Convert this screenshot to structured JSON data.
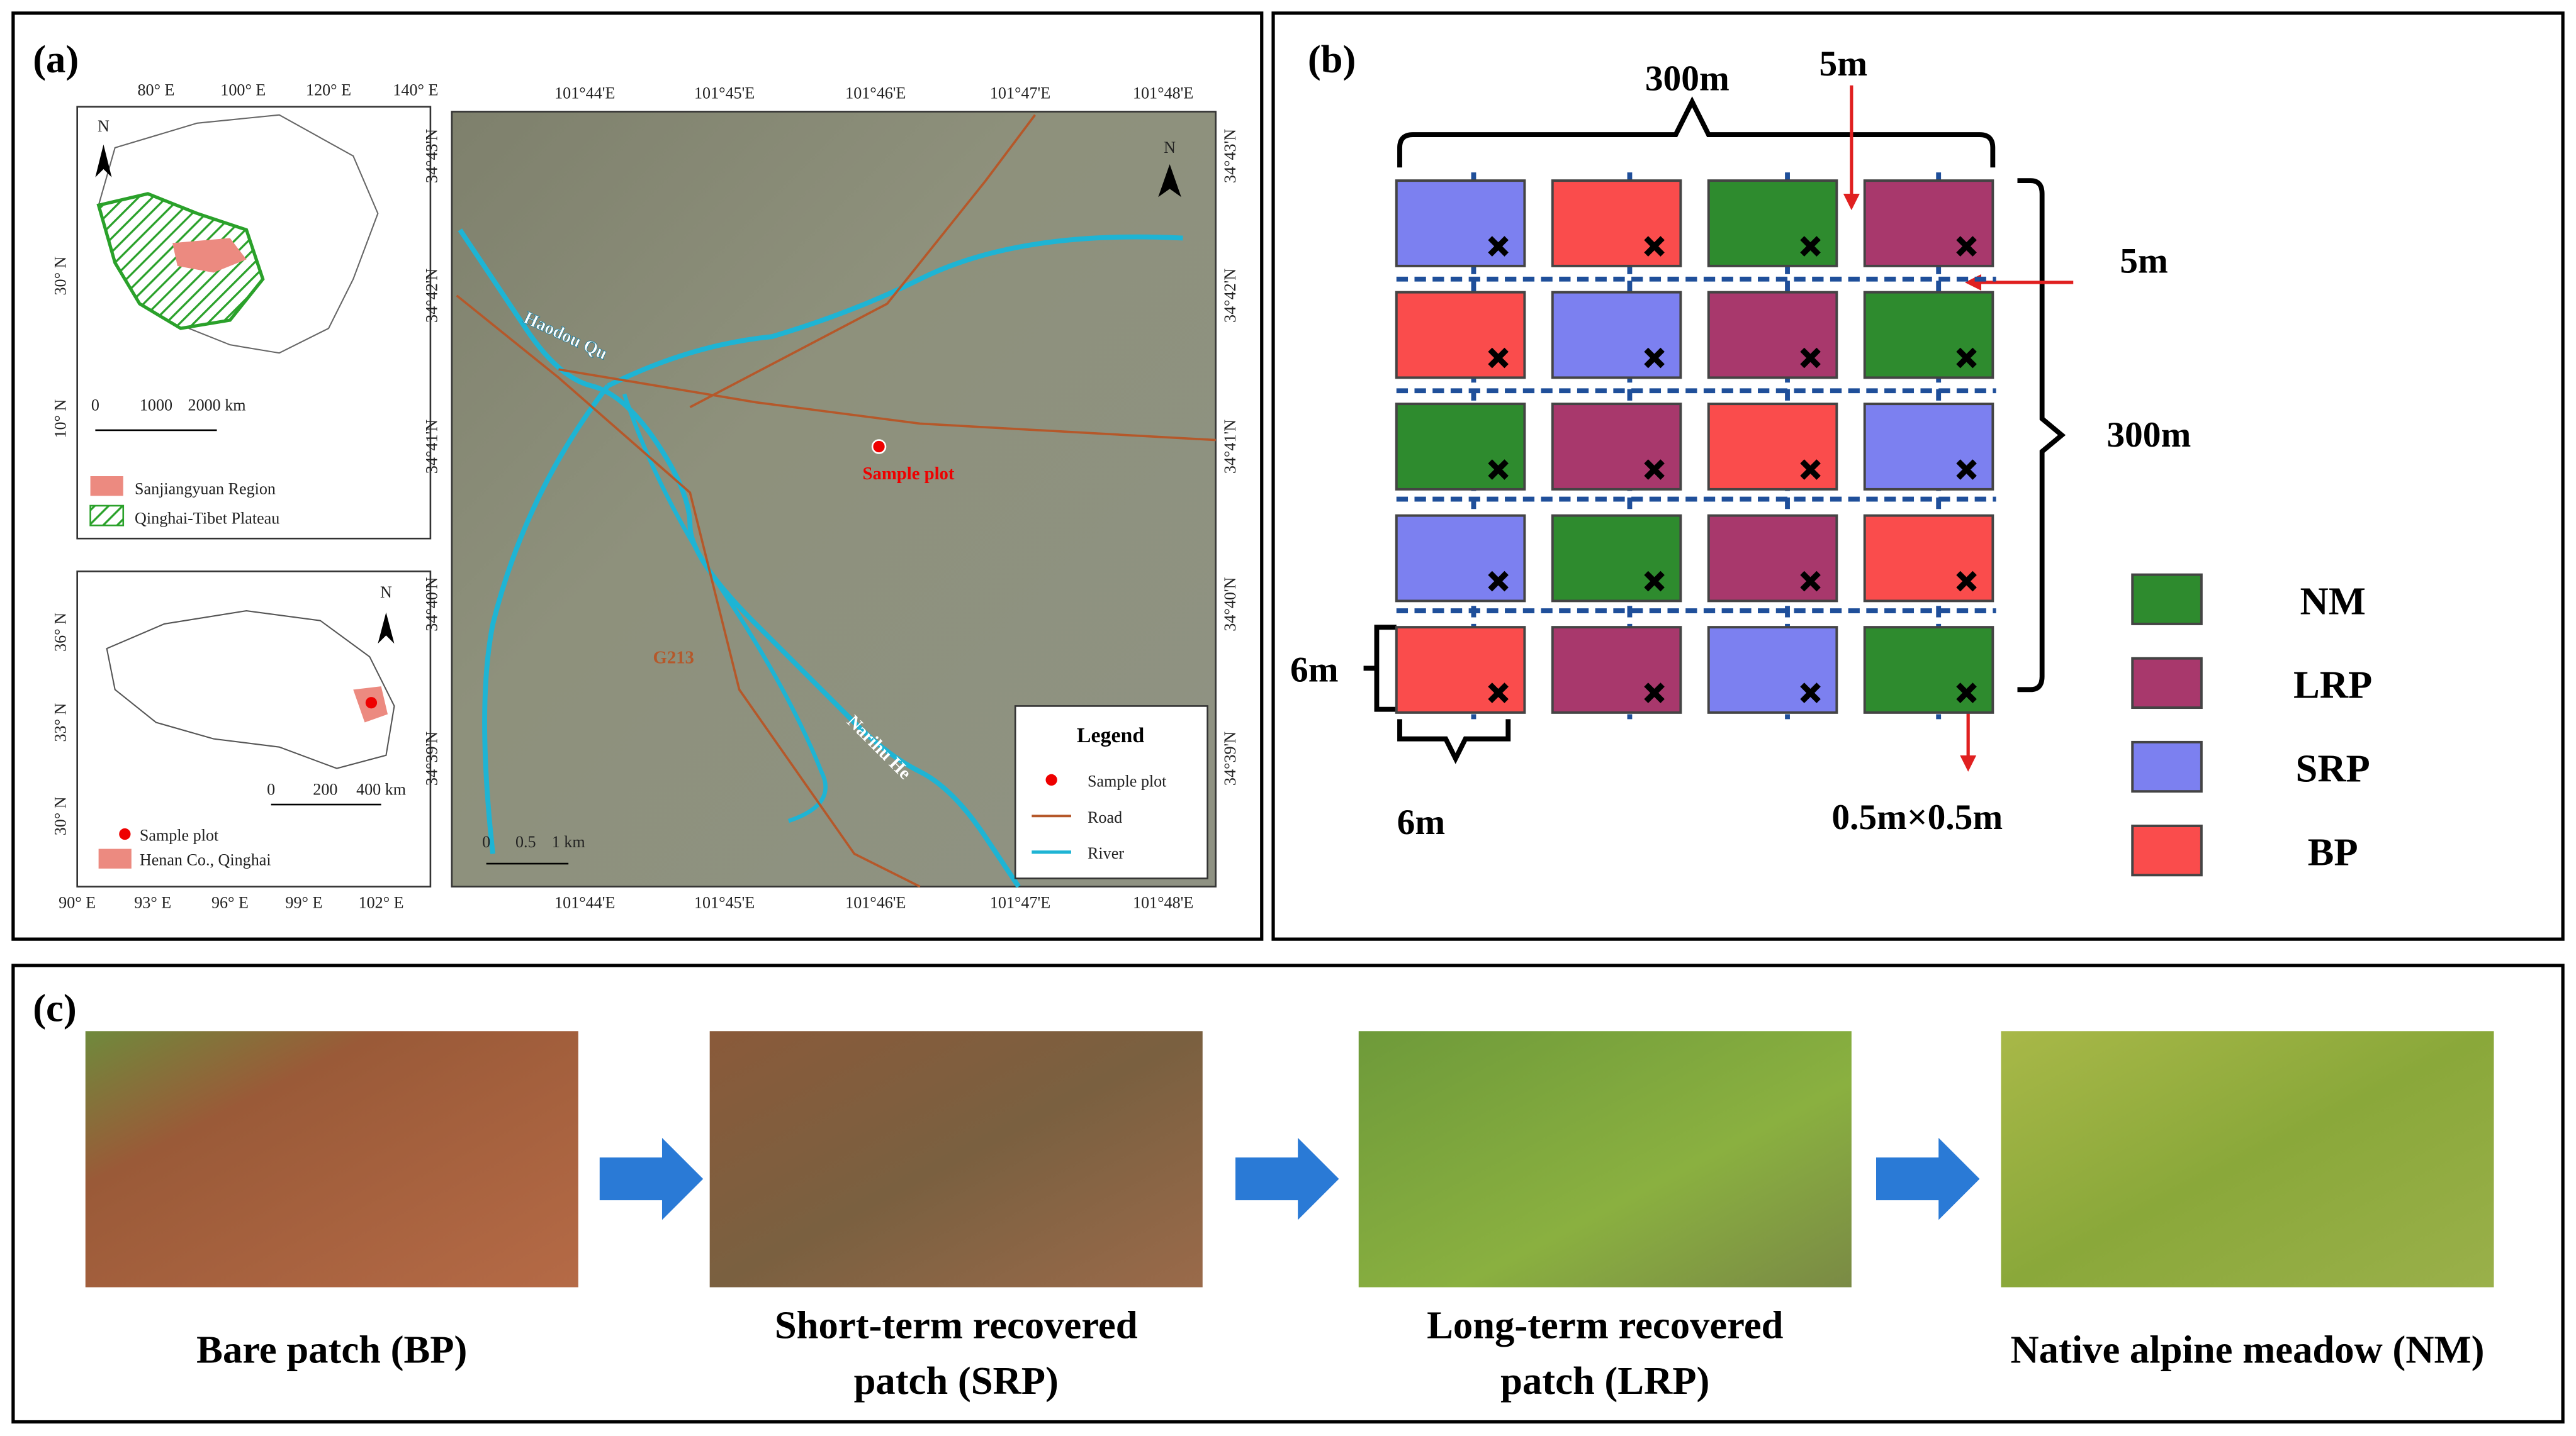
{
  "panel_a": {
    "label": "(a)",
    "inset_china": {
      "lon_ticks": [
        "80° E",
        "100° E",
        "120° E",
        "140° E"
      ],
      "lat_ticks": [
        "30° N",
        "10° N"
      ],
      "north": "N",
      "scale": [
        "0",
        "1000",
        "2000 km"
      ],
      "legend": [
        "Sanjiangyuan Region",
        "Qinghai-Tibet Plateau"
      ]
    },
    "inset_qinghai": {
      "lon_ticks": [
        "90° E",
        "93° E",
        "96° E",
        "99° E",
        "102° E"
      ],
      "lat_ticks": [
        "36° N",
        "33° N",
        "30° N"
      ],
      "north": "N",
      "scale": [
        "0",
        "200",
        "400 km"
      ],
      "legend": [
        "Sample plot",
        "Henan Co., Qinghai"
      ]
    },
    "main_map": {
      "lon_ticks": [
        "101°44'E",
        "101°45'E",
        "101°46'E",
        "101°47'E",
        "101°48'E"
      ],
      "lat_ticks": [
        "34°43'N",
        "34°42'N",
        "34°41'N",
        "34°40'N",
        "34°39'N"
      ],
      "north": "N",
      "labels": [
        "Haodou Qu",
        "Sample plot",
        "G213",
        "Narihu He"
      ],
      "scale": [
        "0",
        "0.5",
        "1 km"
      ],
      "legend": {
        "title": "Legend",
        "items": [
          "Sample plot",
          "Road",
          "River"
        ]
      }
    }
  },
  "panel_b": {
    "label": "(b)",
    "dims": {
      "total_width": "300m",
      "gap_top": "5m",
      "gap_side": "5m",
      "total_height": "300m",
      "plot_height": "6m",
      "plot_width": "6m",
      "quadrat": "0.5m×0.5m"
    },
    "legend": [
      {
        "name": "NM",
        "color": "#2e8b2e"
      },
      {
        "name": "LRP",
        "color": "#a8386c"
      },
      {
        "name": "SRP",
        "color": "#7c80f0"
      },
      {
        "name": "BP",
        "color": "#fa4c4c"
      }
    ],
    "grid": [
      [
        "SRP",
        "BP",
        "NM",
        "LRP"
      ],
      [
        "BP",
        "SRP",
        "LRP",
        "NM"
      ],
      [
        "NM",
        "LRP",
        "BP",
        "SRP"
      ],
      [
        "SRP",
        "NM",
        "LRP",
        "BP"
      ],
      [
        "BP",
        "LRP",
        "SRP",
        "NM"
      ]
    ]
  },
  "panel_c": {
    "label": "(c)",
    "photos": [
      [
        "Bare patch (BP)"
      ],
      [
        "Short-term recovered",
        "patch (SRP)"
      ],
      [
        "Long-term recovered",
        "patch (LRP)"
      ],
      [
        "Native alpine meadow (NM)"
      ]
    ]
  }
}
